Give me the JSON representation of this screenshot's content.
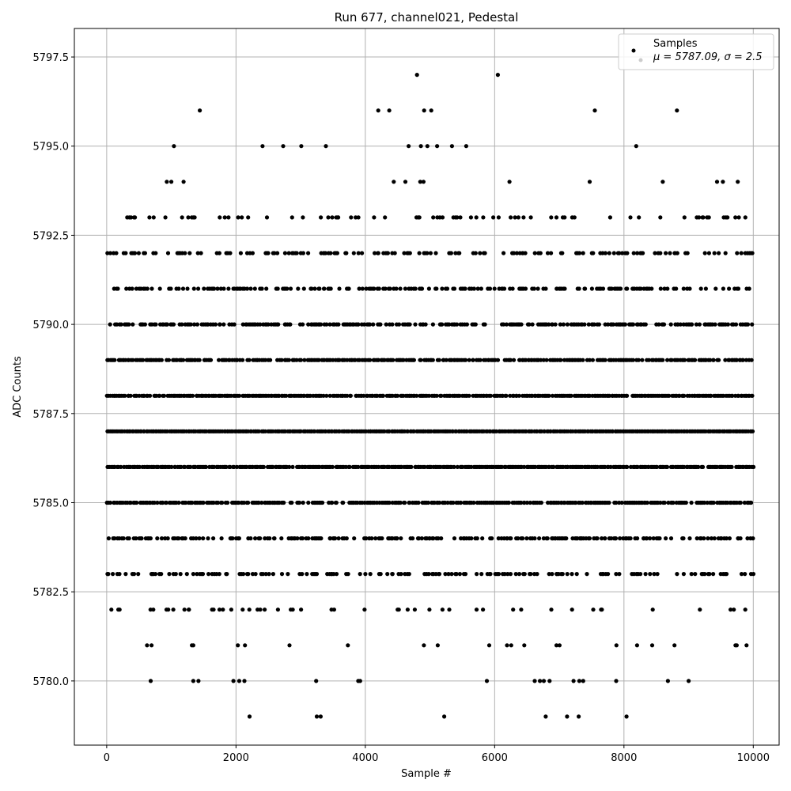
{
  "chart_data": {
    "type": "scatter",
    "title": "Run 677, channel021, Pedestal",
    "xlabel": "Sample #",
    "ylabel": "ADC Counts",
    "xlim": [
      -500,
      10400
    ],
    "ylim": [
      5778.2,
      5798.3
    ],
    "xticks": [
      0,
      2000,
      4000,
      6000,
      8000,
      10000
    ],
    "yticks": [
      5780.0,
      5782.5,
      5785.0,
      5787.5,
      5790.0,
      5792.5,
      5795.0,
      5797.5
    ],
    "grid": true,
    "legend_position": "top-right",
    "legend": {
      "title": "Samples",
      "stats": "μ = 5787.09, σ = 2.5"
    },
    "series": [
      {
        "name": "Samples",
        "color": "#000000",
        "n_samples": 10000,
        "levels": [
          5779,
          5780,
          5781,
          5782,
          5783,
          5784,
          5785,
          5786,
          5787,
          5788,
          5789,
          5790,
          5791,
          5792,
          5793,
          5794,
          5795,
          5796,
          5797
        ],
        "sparse_points": [
          [
            2210,
            5779
          ],
          [
            3250,
            5779
          ],
          [
            3310,
            5779
          ],
          [
            5220,
            5779
          ],
          [
            6790,
            5779
          ],
          [
            7120,
            5779
          ],
          [
            7300,
            5779
          ],
          [
            8040,
            5779
          ],
          [
            680,
            5780
          ],
          [
            1340,
            5780
          ],
          [
            1420,
            5780
          ],
          [
            1960,
            5780
          ],
          [
            2050,
            5780
          ],
          [
            2130,
            5780
          ],
          [
            3240,
            5780
          ],
          [
            3890,
            5780
          ],
          [
            3920,
            5780
          ],
          [
            5880,
            5780
          ],
          [
            6620,
            5780
          ],
          [
            6700,
            5780
          ],
          [
            6760,
            5780
          ],
          [
            6850,
            5780
          ],
          [
            7220,
            5780
          ],
          [
            7310,
            5780
          ],
          [
            7370,
            5780
          ],
          [
            7880,
            5780
          ],
          [
            8680,
            5780
          ],
          [
            9000,
            5780
          ],
          [
            1440,
            5796
          ],
          [
            4200,
            5796
          ],
          [
            4370,
            5796
          ],
          [
            4910,
            5796
          ],
          [
            5020,
            5796
          ],
          [
            7550,
            5796
          ],
          [
            8820,
            5796
          ],
          [
            4800,
            5797
          ],
          [
            6050,
            5797
          ]
        ],
        "mid_points": [
          [
            1040,
            5795
          ],
          [
            2410,
            5795
          ],
          [
            2730,
            5795
          ],
          [
            3010,
            5795
          ],
          [
            3390,
            5795
          ],
          [
            4670,
            5795
          ],
          [
            4860,
            5795
          ],
          [
            4960,
            5795
          ],
          [
            5110,
            5795
          ],
          [
            5340,
            5795
          ],
          [
            5560,
            5795
          ],
          [
            8190,
            5795
          ],
          [
            930,
            5794
          ],
          [
            1000,
            5794
          ],
          [
            1190,
            5794
          ],
          [
            4440,
            5794
          ],
          [
            4620,
            5794
          ],
          [
            4850,
            5794
          ],
          [
            4900,
            5794
          ],
          [
            6230,
            5794
          ],
          [
            7470,
            5794
          ],
          [
            8600,
            5794
          ],
          [
            9440,
            5794
          ],
          [
            9530,
            5794
          ],
          [
            9760,
            5794
          ]
        ]
      }
    ]
  }
}
